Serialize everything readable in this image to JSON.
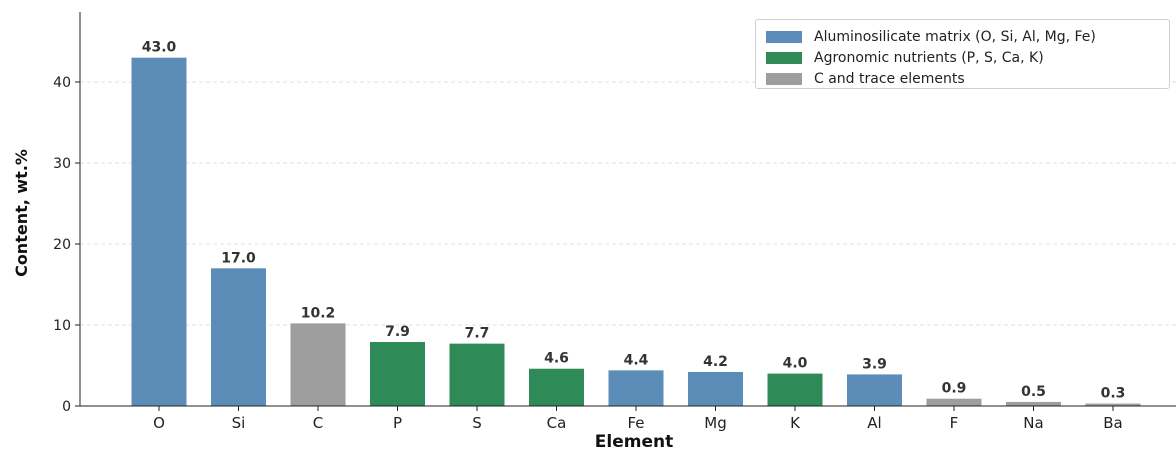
{
  "chart_data": {
    "type": "bar",
    "title": "",
    "xlabel": "Element",
    "ylabel": "Content, wt.%",
    "ylim": [
      0,
      45
    ],
    "yticks": [
      0,
      10,
      20,
      30,
      40
    ],
    "grid": "horizontal dashed",
    "legend_position": "top-right",
    "categories": [
      "O",
      "Si",
      "C",
      "P",
      "S",
      "Ca",
      "Fe",
      "Mg",
      "K",
      "Al",
      "F",
      "Na",
      "Ba"
    ],
    "values": [
      43.0,
      17.0,
      10.2,
      7.9,
      7.7,
      4.6,
      4.4,
      4.2,
      4.0,
      3.9,
      0.9,
      0.5,
      0.3
    ],
    "value_labels": [
      "43.0",
      "17.0",
      "10.2",
      "7.9",
      "7.7",
      "4.6",
      "4.4",
      "4.2",
      "4.0",
      "3.9",
      "0.9",
      "0.5",
      "0.3"
    ],
    "groups": [
      "matrix",
      "matrix",
      "trace",
      "nutrient",
      "nutrient",
      "nutrient",
      "matrix",
      "matrix",
      "nutrient",
      "matrix",
      "trace",
      "trace",
      "trace"
    ],
    "legend": [
      {
        "key": "matrix",
        "label": "Aluminosilicate matrix (O, Si, Al, Mg, Fe)",
        "color": "#5b8db8"
      },
      {
        "key": "nutrient",
        "label": "Agronomic nutrients (P, S, Ca, K)",
        "color": "#2e8b57"
      },
      {
        "key": "trace",
        "label": "C and trace elements",
        "color": "#9e9e9e"
      }
    ]
  }
}
